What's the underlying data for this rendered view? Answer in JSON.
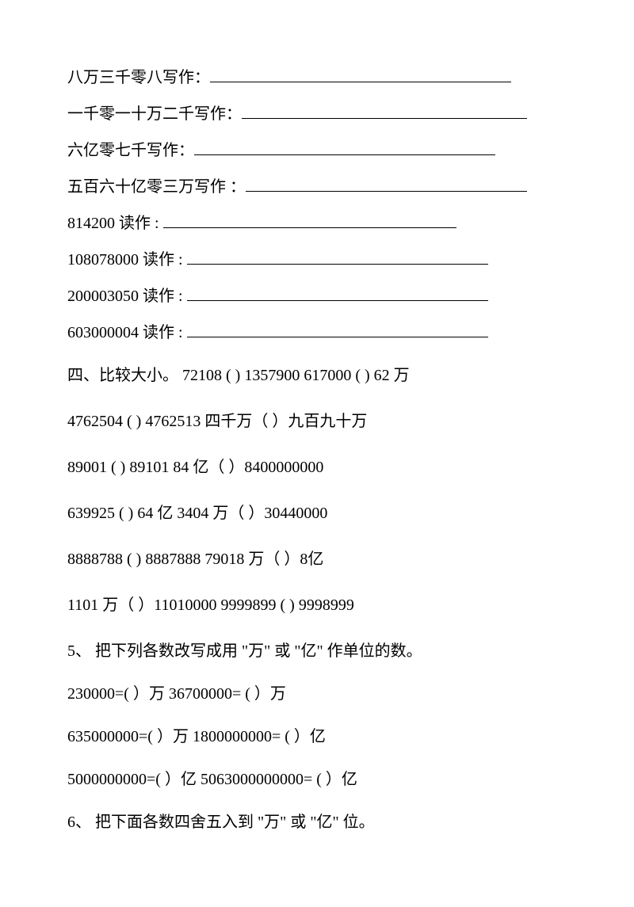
{
  "writeLines": [
    {
      "label": "八万三千零八写作：",
      "underlineWidth": 380
    },
    {
      "label": "一千零一十万二千写作：",
      "underlineWidth": 360
    },
    {
      "label": "六亿零七千写作：",
      "underlineWidth": 380
    },
    {
      "label": "五百六十亿零三万写作 ：",
      "underlineWidth": 355
    }
  ],
  "readLines": [
    {
      "label": "814200 读作 : ",
      "underlineWidth": 370
    },
    {
      "label": "108078000 读作 : ",
      "underlineWidth": 380
    },
    {
      "label": "200003050 读作 : ",
      "underlineWidth": 380
    },
    {
      "label": "603000004 读作 : ",
      "underlineWidth": 380
    }
  ],
  "section4": {
    "title": "四、比较大小。",
    "lines": [
      "72108 (        ) 1357900    617000 (      ) 62 万",
      "4762504 (         ) 4762513 四千万（               ）九百九十万",
      " 89001 (       ) 89101        84 亿（                ）8400000000",
      "639925 (       ) 64 亿  3404 万（                      ）30440000",
      "8888788 (        ) 8887888      79018 万（            ）8亿",
      " 1101 万（          ）11010000 9999899        (       ) 9998999"
    ]
  },
  "section5": {
    "title": "5、    把下列各数改写成用 \"万\" 或 \"亿\" 作单位的数。",
    "lines": [
      "230000=(          ）万  36700000=              (          ）万",
      "635000000=(          ）万  1800000000=          (          ）亿",
      "5000000000=(            ）亿 5063000000000=              (        ）亿"
    ]
  },
  "section6": {
    "title": "6、    把下面各数四舍五入到 \"万\" 或 \"亿\" 位。"
  }
}
